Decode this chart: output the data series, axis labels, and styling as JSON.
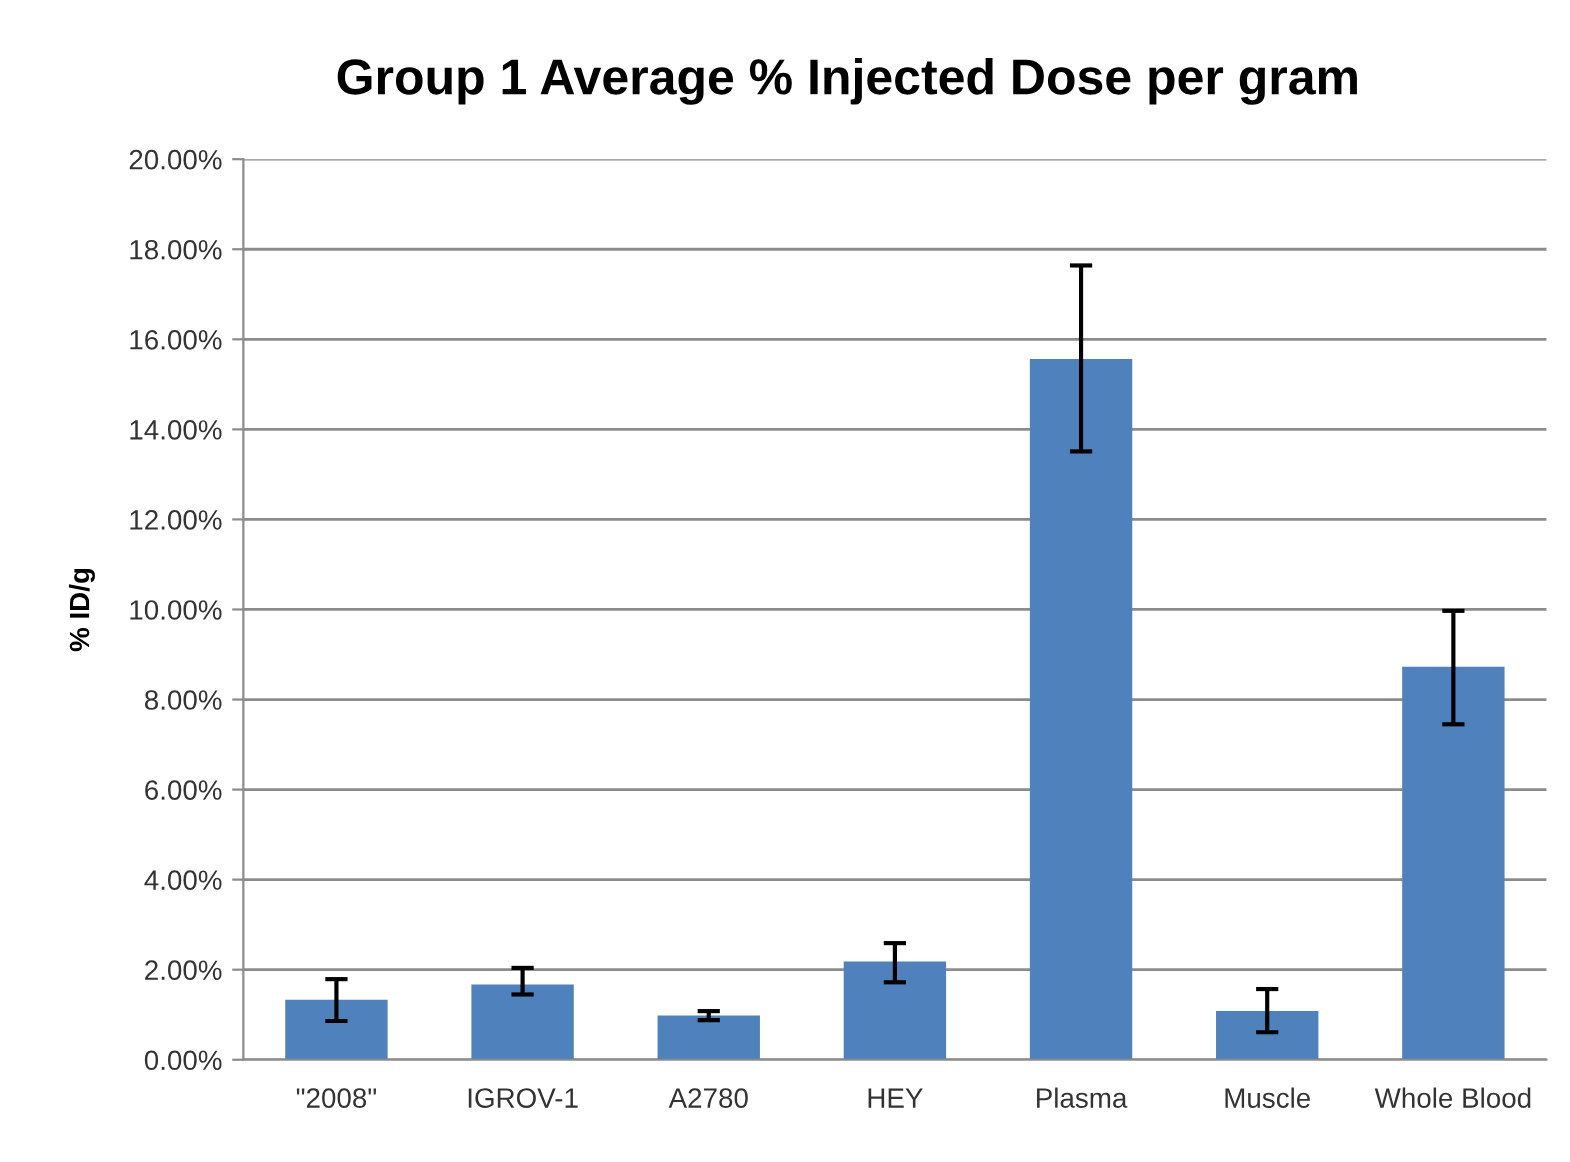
{
  "chart_data": {
    "type": "bar",
    "title": "Group 1 Average % Injected Dose per gram",
    "ylabel": "% ID/g",
    "categories": [
      "\"2008\"",
      "IGROV-1",
      "A2780",
      "HEY",
      "Plasma",
      "Muscle",
      "Whole Blood"
    ],
    "series": [
      {
        "color": "#4f81bd",
        "values": [
          1.33,
          1.67,
          0.98,
          2.18,
          15.56,
          1.08,
          8.73
        ],
        "errors": [
          [
            0.86,
            1.79
          ],
          [
            1.45,
            2.04
          ],
          [
            0.88,
            1.08
          ],
          [
            1.72,
            2.59
          ],
          [
            13.51,
            17.64
          ],
          [
            0.61,
            1.57
          ],
          [
            7.45,
            9.97
          ]
        ]
      }
    ],
    "ylim": [
      0,
      20
    ],
    "yticks": [
      {
        "value": 0,
        "label": "0.00%"
      },
      {
        "value": 2,
        "label": "2.00%"
      },
      {
        "value": 4,
        "label": "4.00%"
      },
      {
        "value": 6,
        "label": "6.00%"
      },
      {
        "value": 8,
        "label": "8.00%"
      },
      {
        "value": 10,
        "label": "10.00%"
      },
      {
        "value": 12,
        "label": "12.00%"
      },
      {
        "value": 14,
        "label": "14.00%"
      },
      {
        "value": 16,
        "label": "16.00%"
      },
      {
        "value": 18,
        "label": "18.00%"
      },
      {
        "value": 20,
        "label": "20.00%"
      }
    ],
    "grid": "y",
    "legend": false
  }
}
